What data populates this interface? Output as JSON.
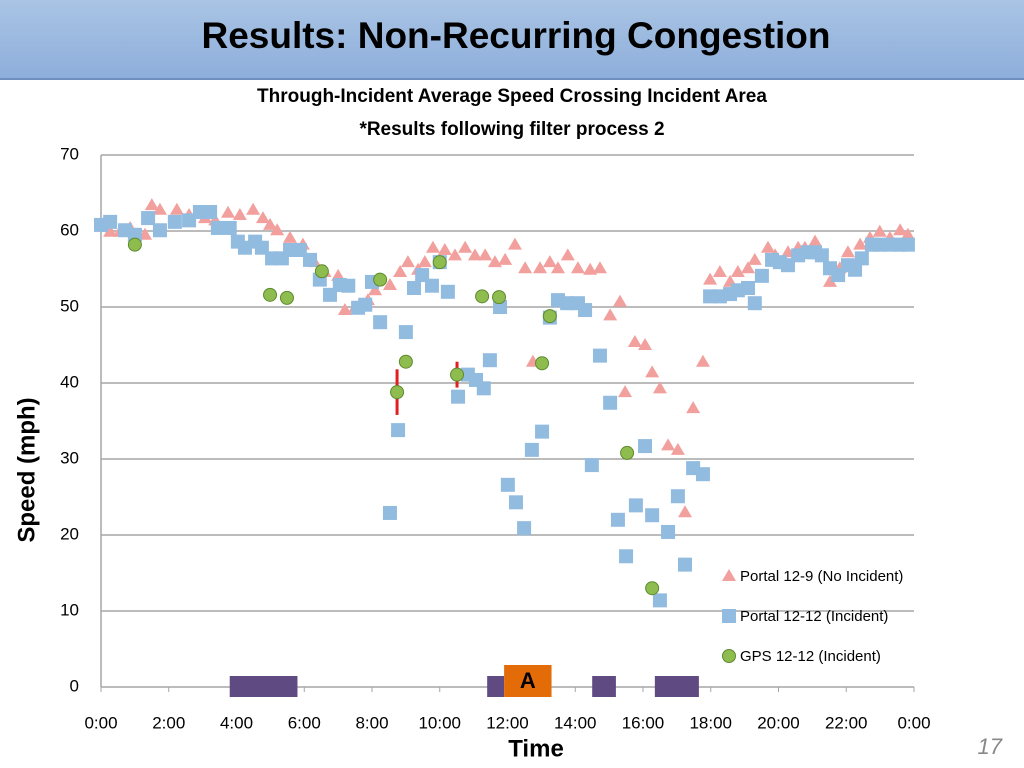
{
  "slide": {
    "title": "Results: Non-Recurring Congestion",
    "page_number": "17"
  },
  "chart_data": {
    "type": "scatter",
    "title": "Through-Incident Average Speed Crossing Incident Area",
    "subtitle": "*Results following filter process 2",
    "x_label": "Time",
    "y_label": "Speed (mph)",
    "xlim": [
      0,
      24
    ],
    "xticks": [
      {
        "value": 0,
        "label": "0:00"
      },
      {
        "value": 2,
        "label": "2:00"
      },
      {
        "value": 4,
        "label": "4:00"
      },
      {
        "value": 6,
        "label": "6:00"
      },
      {
        "value": 8,
        "label": "8:00"
      },
      {
        "value": 10,
        "label": "10:00"
      },
      {
        "value": 12,
        "label": "12:00"
      },
      {
        "value": 14,
        "label": "14:00"
      },
      {
        "value": 16,
        "label": "16:00"
      },
      {
        "value": 18,
        "label": "18:00"
      },
      {
        "value": 20,
        "label": "20:00"
      },
      {
        "value": 22,
        "label": "22:00"
      },
      {
        "value": 24,
        "label": "0:00"
      }
    ],
    "ylim": [
      0,
      70
    ],
    "yticks": [
      0,
      10,
      20,
      30,
      40,
      50,
      60,
      70
    ],
    "grid": true,
    "legend": "lower right",
    "series": [
      {
        "name": "Portal 12-9 (No Incident)",
        "color": "#f2a09d",
        "marker": "triangle",
        "x": [
          0.0,
          0.27,
          0.56,
          0.86,
          1.3,
          1.5,
          1.74,
          2.24,
          2.6,
          3.07,
          3.37,
          3.75,
          4.1,
          4.49,
          4.78,
          4.99,
          5.2,
          5.58,
          5.96,
          6.3,
          6.6,
          7.0,
          7.2,
          7.5,
          7.88,
          8.09,
          8.53,
          8.83,
          9.06,
          9.36,
          9.56,
          9.8,
          10.15,
          10.45,
          10.75,
          11.04,
          11.34,
          11.63,
          11.93,
          12.22,
          12.52,
          12.75,
          12.96,
          13.25,
          13.49,
          13.78,
          14.08,
          14.44,
          14.73,
          15.03,
          15.32,
          15.47,
          15.76,
          16.06,
          16.27,
          16.5,
          16.74,
          17.03,
          17.24,
          17.48,
          17.77,
          17.98,
          18.27,
          18.57,
          18.8,
          19.1,
          19.3,
          19.69,
          19.9,
          20.28,
          20.58,
          20.78,
          21.08,
          21.52,
          21.81,
          22.05,
          22.41,
          22.7,
          22.99,
          23.29,
          23.59,
          23.82
        ],
        "values": [
          60.8,
          59.9,
          59.9,
          60.4,
          59.5,
          63.4,
          62.8,
          62.8,
          62.1,
          61.7,
          61.4,
          62.4,
          62.1,
          62.8,
          61.7,
          60.8,
          60.1,
          59.1,
          58.2,
          55.9,
          54.6,
          54.1,
          49.6,
          49.9,
          50.9,
          52.2,
          52.9,
          54.6,
          55.9,
          54.9,
          55.9,
          57.8,
          57.5,
          56.8,
          57.8,
          56.8,
          56.8,
          55.9,
          56.2,
          58.2,
          55.1,
          42.8,
          55.1,
          55.9,
          55.1,
          56.8,
          55.1,
          54.9,
          55.1,
          48.9,
          50.7,
          38.8,
          45.4,
          45,
          41.4,
          39.3,
          31.8,
          31.2,
          23,
          36.7,
          42.8,
          53.6,
          54.6,
          53.3,
          54.6,
          55.1,
          56.2,
          57.8,
          56.8,
          57.2,
          57.8,
          57.8,
          58.6,
          53.3,
          55.1,
          57.2,
          58.2,
          59.1,
          59.9,
          59.1,
          60.1,
          59.5
        ]
      },
      {
        "name": "Portal 12-12 (Incident)",
        "color": "#92bbe0",
        "marker": "square",
        "x": [
          0,
          0.27,
          0.71,
          1.0,
          1.39,
          1.74,
          2.18,
          2.6,
          2.92,
          3.22,
          3.45,
          3.8,
          4.04,
          4.25,
          4.55,
          4.75,
          5.05,
          5.34,
          5.58,
          5.87,
          6.17,
          6.46,
          6.76,
          7.05,
          7.3,
          7.59,
          7.8,
          8.0,
          8.24,
          8.53,
          8.77,
          9.0,
          9.24,
          9.48,
          9.77,
          10.0,
          10.24,
          10.54,
          10.83,
          11.07,
          11.3,
          11.48,
          11.78,
          12.01,
          12.25,
          12.49,
          12.72,
          13.02,
          13.25,
          13.49,
          13.76,
          14.08,
          14.29,
          14.49,
          14.73,
          15.03,
          15.26,
          15.5,
          15.79,
          16.06,
          16.27,
          16.5,
          16.74,
          17.03,
          17.24,
          17.48,
          17.77,
          17.98,
          18.27,
          18.57,
          18.8,
          19.1,
          19.3,
          19.51,
          19.81,
          20.04,
          20.28,
          20.58,
          20.87,
          21.08,
          21.28,
          21.52,
          21.76,
          22.05,
          22.26,
          22.46,
          22.76,
          22.99,
          23.29,
          23.59,
          23.82
        ],
        "values": [
          60.8,
          61.2,
          60.1,
          59.5,
          61.7,
          60.1,
          61.2,
          61.4,
          62.5,
          62.5,
          60.4,
          60.4,
          58.6,
          57.8,
          58.6,
          57.8,
          56.4,
          56.4,
          57.5,
          57.5,
          56.2,
          53.6,
          51.6,
          52.9,
          52.8,
          49.9,
          50.3,
          53.3,
          48,
          22.9,
          33.8,
          46.7,
          52.5,
          54.2,
          52.8,
          55.9,
          52,
          38.2,
          41.1,
          40.4,
          39.3,
          43,
          50,
          26.6,
          24.3,
          20.9,
          31.2,
          33.6,
          48.6,
          50.9,
          50.5,
          50.5,
          49.6,
          29.2,
          43.6,
          37.4,
          22,
          17.2,
          23.9,
          31.7,
          22.6,
          11.4,
          20.4,
          25.1,
          16.1,
          28.8,
          28,
          51.4,
          51.4,
          51.7,
          52.2,
          52.5,
          50.5,
          54.1,
          56.2,
          55.9,
          55.5,
          56.8,
          57.2,
          57.2,
          56.8,
          55.1,
          54.2,
          55.5,
          54.9,
          56.4,
          58.2,
          58.2,
          58.2,
          58.2,
          58.2
        ]
      },
      {
        "name": "GPS 12-12 (Incident)",
        "color": "#8fbc4f",
        "marker": "circle",
        "x": [
          1.0,
          4.99,
          5.49,
          6.52,
          8.24,
          8.74,
          9.0,
          10.0,
          10.51,
          11.25,
          11.75,
          13.02,
          13.25,
          15.53,
          16.27
        ],
        "values": [
          58.2,
          51.6,
          51.2,
          54.7,
          53.6,
          38.8,
          42.8,
          55.9,
          41.1,
          51.4,
          51.3,
          42.6,
          48.8,
          30.8,
          13
        ],
        "errors": [
          null,
          null,
          null,
          null,
          null,
          3,
          null,
          null,
          1.7,
          null,
          null,
          null,
          null,
          null,
          null
        ],
        "error_color": "#e02020"
      }
    ],
    "incidents": [
      {
        "start": 3.8,
        "end": 5.8
      },
      {
        "start": 11.4,
        "end": 11.9
      },
      {
        "start": 14.5,
        "end": 15.2
      },
      {
        "start": 16.35,
        "end": 17.65
      }
    ],
    "incident_color": "#5f4b82",
    "annotation": {
      "text": "A",
      "start": 11.9,
      "end": 13.3,
      "color": "#e36c09"
    }
  }
}
